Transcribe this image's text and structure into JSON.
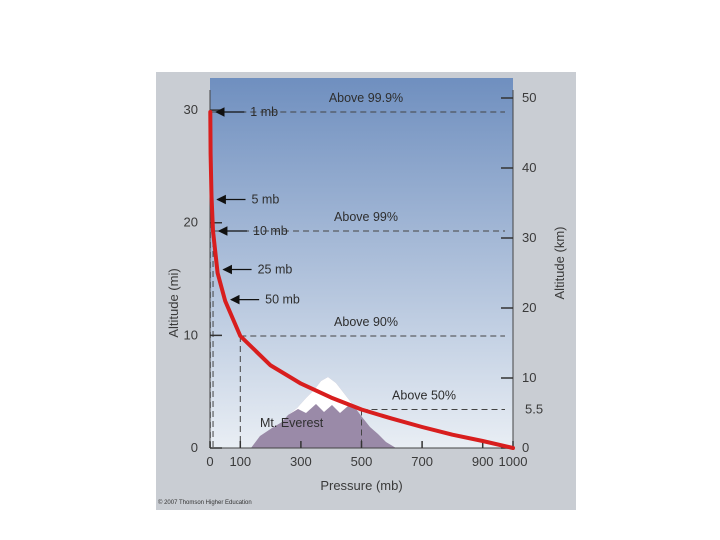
{
  "copyright": "© 2007 Thomson Higher Education",
  "chart_data": {
    "type": "line",
    "xlabel": "Pressure (mb)",
    "ylabel_left": "Altitude (mi)",
    "ylabel_right": "Altitude (km)",
    "xlim": [
      0,
      1000
    ],
    "ylim_km": [
      0,
      50
    ],
    "x_ticks": [
      0,
      100,
      300,
      500,
      700,
      900,
      1000
    ],
    "left_ticks_mi": [
      0,
      10,
      20,
      30
    ],
    "right_ticks_km": [
      0,
      10,
      20,
      30,
      40,
      50
    ],
    "right_extra_tick_km": 5.5,
    "series": [
      {
        "x": [
          1,
          2,
          5,
          10,
          25,
          50,
          100,
          200,
          300,
          400,
          500,
          600,
          700,
          800,
          900,
          1000
        ],
        "y": [
          48,
          42,
          36,
          31,
          25,
          21,
          16,
          11.8,
          9.2,
          7.2,
          5.5,
          4.2,
          3.0,
          1.9,
          1.0,
          0
        ],
        "color": "#d81e1e"
      }
    ],
    "thresholds": [
      {
        "label": "Above 99.9%",
        "altitude_km": 48
      },
      {
        "label": "Above 99%",
        "altitude_km": 31
      },
      {
        "label": "Above 90%",
        "altitude_km": 16
      },
      {
        "label": "Above 50%",
        "altitude_km": 5.5
      }
    ],
    "pressure_labels": [
      {
        "label": "1 mb",
        "pressure": 1,
        "altitude_km": 48
      },
      {
        "label": "5 mb",
        "pressure": 5,
        "altitude_km": 35.5
      },
      {
        "label": "10 mb",
        "pressure": 10,
        "altitude_km": 31
      },
      {
        "label": "25 mb",
        "pressure": 25,
        "altitude_km": 25.5
      },
      {
        "label": "50 mb",
        "pressure": 50,
        "altitude_km": 21.2
      }
    ],
    "mountain_label": "Mt. Everest",
    "colors": {
      "sky_top": "#6f8fbf",
      "sky_bottom": "#e9eef4",
      "curve": "#d81e1e",
      "mountain": "#9a8aa8",
      "snow": "#ffffff",
      "frame": "#c9cdd3"
    }
  }
}
